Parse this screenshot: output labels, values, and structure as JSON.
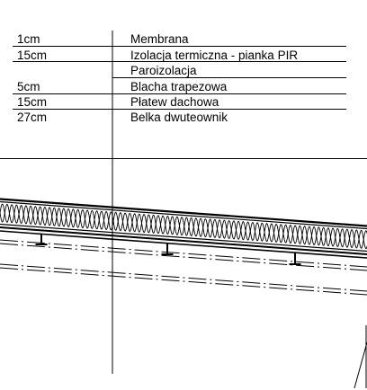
{
  "layers": [
    {
      "thickness": "1cm",
      "name": "Membrana"
    },
    {
      "thickness": "15cm",
      "name": "Izolacja termiczna - pianka PIR"
    },
    {
      "thickness": "",
      "name": "Paroizolacja"
    },
    {
      "thickness": "5cm",
      "name": "Blacha trapezowa"
    },
    {
      "thickness": "15cm",
      "name": "Płatew dachowa"
    },
    {
      "thickness": "27cm",
      "name": "Belka dwuteownik"
    }
  ]
}
